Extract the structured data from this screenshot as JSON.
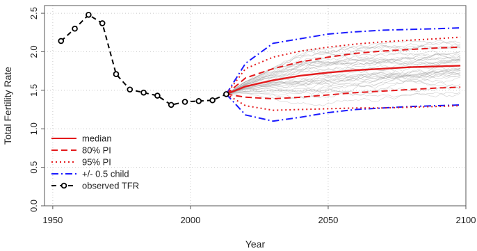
{
  "chart_data": {
    "type": "line",
    "title": "",
    "xlabel": "Year",
    "ylabel": "Total Fertility Rate",
    "xlim": [
      1947,
      2100
    ],
    "ylim": [
      0.0,
      2.6
    ],
    "x_ticks": [
      1950,
      2000,
      2050,
      2100
    ],
    "x_tick_labels": [
      "1950",
      "2000",
      "2050",
      "2100"
    ],
    "y_ticks": [
      0.0,
      0.5,
      1.0,
      1.5,
      2.0,
      2.5
    ],
    "y_tick_labels": [
      "0.0",
      "0.5",
      "1.0",
      "1.5",
      "2.0",
      "2.5"
    ],
    "grid": true,
    "legend_position": "bottom-left",
    "series": [
      {
        "name": "observed TFR",
        "color": "#000000",
        "style": "dashed-with-points",
        "x": [
          1953,
          1958,
          1963,
          1968,
          1973,
          1978,
          1983,
          1988,
          1993,
          1998,
          2003,
          2008,
          2013
        ],
        "y": [
          2.14,
          2.3,
          2.48,
          2.37,
          1.71,
          1.51,
          1.47,
          1.43,
          1.31,
          1.35,
          1.36,
          1.37,
          1.45
        ]
      },
      {
        "name": "median",
        "color": "#e41a1c",
        "style": "solid",
        "x": [
          2013,
          2020,
          2030,
          2040,
          2050,
          2060,
          2070,
          2080,
          2090,
          2098
        ],
        "y": [
          1.45,
          1.55,
          1.63,
          1.69,
          1.73,
          1.76,
          1.78,
          1.8,
          1.81,
          1.82
        ]
      },
      {
        "name": "80% PI",
        "color": "#e41a1c",
        "style": "dashed",
        "x": [
          2013,
          2020,
          2030,
          2040,
          2050,
          2060,
          2070,
          2080,
          2090,
          2098
        ],
        "y": [
          1.45,
          1.66,
          1.78,
          1.87,
          1.93,
          1.98,
          2.01,
          2.03,
          2.05,
          2.06
        ]
      },
      {
        "name": "80% PI lower",
        "color": "#e41a1c",
        "style": "dashed",
        "x": [
          2013,
          2020,
          2030,
          2040,
          2050,
          2060,
          2070,
          2080,
          2090,
          2098
        ],
        "y": [
          1.45,
          1.41,
          1.39,
          1.41,
          1.44,
          1.47,
          1.49,
          1.51,
          1.53,
          1.54
        ]
      },
      {
        "name": "95% PI",
        "color": "#e41a1c",
        "style": "dotted",
        "x": [
          2013,
          2020,
          2030,
          2040,
          2050,
          2060,
          2070,
          2080,
          2090,
          2098
        ],
        "y": [
          1.45,
          1.78,
          1.93,
          2.01,
          2.06,
          2.1,
          2.13,
          2.15,
          2.17,
          2.19
        ]
      },
      {
        "name": "95% PI lower",
        "color": "#e41a1c",
        "style": "dotted",
        "x": [
          2013,
          2020,
          2030,
          2040,
          2050,
          2060,
          2070,
          2080,
          2090,
          2098
        ],
        "y": [
          1.45,
          1.3,
          1.24,
          1.25,
          1.26,
          1.27,
          1.27,
          1.28,
          1.29,
          1.3
        ]
      },
      {
        "name": "+/- 0.5 child",
        "color": "#1a1aff",
        "style": "dash-dot",
        "x": [
          2013,
          2020,
          2030,
          2040,
          2050,
          2060,
          2070,
          2080,
          2090,
          2098
        ],
        "y": [
          1.45,
          1.85,
          2.11,
          2.17,
          2.23,
          2.26,
          2.28,
          2.29,
          2.3,
          2.31
        ]
      },
      {
        "name": "+/- 0.5 child lower",
        "color": "#1a1aff",
        "style": "dash-dot",
        "x": [
          2013,
          2020,
          2030,
          2040,
          2050,
          2060,
          2070,
          2080,
          2090,
          2098
        ],
        "y": [
          1.45,
          1.18,
          1.1,
          1.15,
          1.21,
          1.25,
          1.27,
          1.29,
          1.3,
          1.31
        ]
      }
    ],
    "legend": [
      {
        "label": "median",
        "color": "#e41a1c",
        "style": "solid"
      },
      {
        "label": "80% PI",
        "color": "#e41a1c",
        "style": "dashed"
      },
      {
        "label": "95% PI",
        "color": "#e41a1c",
        "style": "dotted"
      },
      {
        "label": "+/- 0.5 child",
        "color": "#1a1aff",
        "style": "dash-dot"
      },
      {
        "label": "observed TFR",
        "color": "#000000",
        "style": "dashed-with-points"
      }
    ],
    "trajectories": {
      "name": "simulated trajectories",
      "color": "#9a9a9a",
      "count": 40,
      "x_start": 2013,
      "x_end": 2098,
      "y_start": 1.45
    }
  }
}
